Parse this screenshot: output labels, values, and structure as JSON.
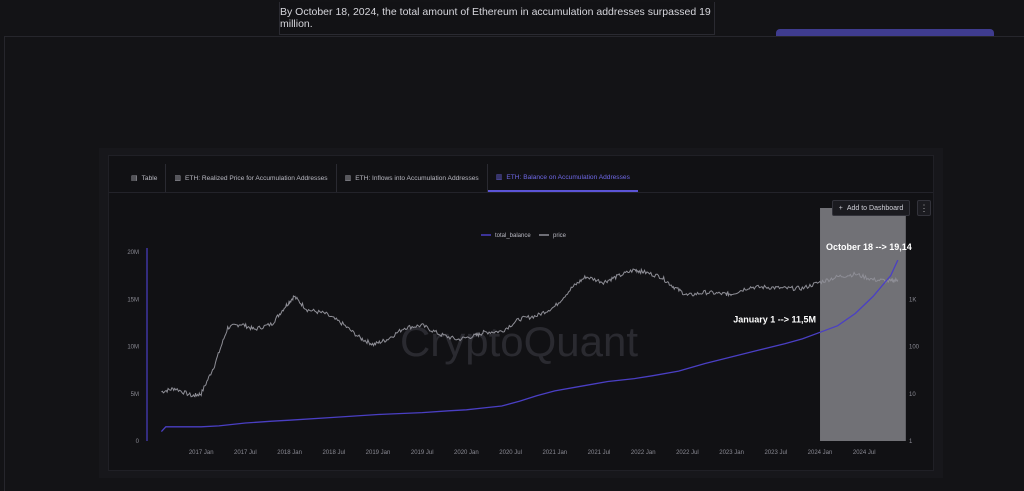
{
  "caption": "By October 18, 2024, the total amount of Ethereum in accumulation addresses surpassed 19 million.",
  "tabs": [
    {
      "label": "Table",
      "icon": "table-icon",
      "active": false
    },
    {
      "label": "ETH: Realized Price for Accumulation Addresses",
      "icon": "bar-chart-icon",
      "active": false
    },
    {
      "label": "ETH: Inflows into Accumulation Addresses",
      "icon": "bar-chart-icon",
      "active": false
    },
    {
      "label": "ETH: Balance on Accumulation Addresses",
      "icon": "bar-chart-icon",
      "active": true
    }
  ],
  "add_to_dashboard": "Add to Dashboard",
  "more_glyph": "⋮",
  "watermark": "CryptoQuant",
  "colors": {
    "balance": "#4a3fc4",
    "price": "#8e8e96",
    "accent": "#5b54d6"
  },
  "chart_data": {
    "type": "line",
    "legend": [
      "total_balance",
      "price"
    ],
    "legend_placement": "top-center",
    "x_ticks": [
      "2017 Jan",
      "2017 Jul",
      "2018 Jan",
      "2018 Jul",
      "2019 Jan",
      "2019 Jul",
      "2020 Jan",
      "2020 Jul",
      "2021 Jan",
      "2021 Jul",
      "2022 Jan",
      "2022 Jul",
      "2023 Jan",
      "2023 Jul",
      "2024 Jan",
      "2024 Jul"
    ],
    "y_left_ticks": [
      "0",
      "5M",
      "10M",
      "15M",
      "20M"
    ],
    "y_left_range": [
      0,
      20
    ],
    "y_right_ticks": [
      "1",
      "10",
      "100",
      "1K"
    ],
    "y_right_scale": "log",
    "y_right_range": [
      1,
      10000
    ],
    "x_range": [
      2016.5,
      2024.95
    ],
    "series": [
      {
        "name": "total_balance",
        "axis": "left",
        "x": [
          2016.55,
          2016.6,
          2016.8,
          2017.0,
          2017.2,
          2017.5,
          2017.8,
          2018.0,
          2018.5,
          2019.0,
          2019.5,
          2019.8,
          2020.0,
          2020.2,
          2020.4,
          2020.6,
          2020.8,
          2021.0,
          2021.3,
          2021.6,
          2021.9,
          2022.1,
          2022.4,
          2022.7,
          2023.0,
          2023.3,
          2023.6,
          2023.8,
          2024.0,
          2024.2,
          2024.4,
          2024.6,
          2024.8,
          2024.88
        ],
        "y": [
          1.0,
          1.5,
          1.5,
          1.5,
          1.6,
          1.9,
          2.1,
          2.2,
          2.5,
          2.8,
          3.0,
          3.2,
          3.3,
          3.5,
          3.7,
          4.2,
          4.8,
          5.3,
          5.8,
          6.3,
          6.6,
          6.9,
          7.4,
          8.2,
          8.9,
          9.6,
          10.3,
          10.8,
          11.5,
          12.2,
          13.5,
          15.3,
          17.5,
          19.14
        ]
      },
      {
        "name": "price",
        "axis": "right",
        "x": [
          2016.55,
          2016.7,
          2016.9,
          2017.0,
          2017.15,
          2017.3,
          2017.45,
          2017.6,
          2017.8,
          2017.95,
          2018.05,
          2018.2,
          2018.4,
          2018.6,
          2018.8,
          2018.95,
          2019.1,
          2019.3,
          2019.5,
          2019.7,
          2019.9,
          2020.1,
          2020.2,
          2020.4,
          2020.6,
          2020.8,
          2021.0,
          2021.2,
          2021.35,
          2021.55,
          2021.7,
          2021.9,
          2022.0,
          2022.2,
          2022.35,
          2022.5,
          2022.7,
          2022.9,
          2023.0,
          2023.2,
          2023.4,
          2023.6,
          2023.8,
          2024.0,
          2024.2,
          2024.4,
          2024.6,
          2024.8,
          2024.88
        ],
        "y": [
          11,
          13,
          9,
          10,
          40,
          250,
          300,
          230,
          300,
          700,
          1150,
          600,
          500,
          300,
          150,
          110,
          140,
          250,
          280,
          180,
          140,
          170,
          200,
          210,
          380,
          450,
          700,
          1800,
          3000,
          2300,
          3000,
          4200,
          3800,
          3000,
          1800,
          1200,
          1400,
          1300,
          1300,
          1800,
          1800,
          1700,
          1700,
          2300,
          3000,
          3400,
          2600,
          2400,
          2600
        ]
      }
    ],
    "annotations": [
      {
        "text": "January 1 --> 11,5M",
        "x": 2024.0,
        "y": 11.5
      },
      {
        "text": "October 18 --> 19,14",
        "x": 2024.88,
        "y": 19.14
      }
    ],
    "highlight_range": [
      2024.0,
      2024.88
    ]
  }
}
